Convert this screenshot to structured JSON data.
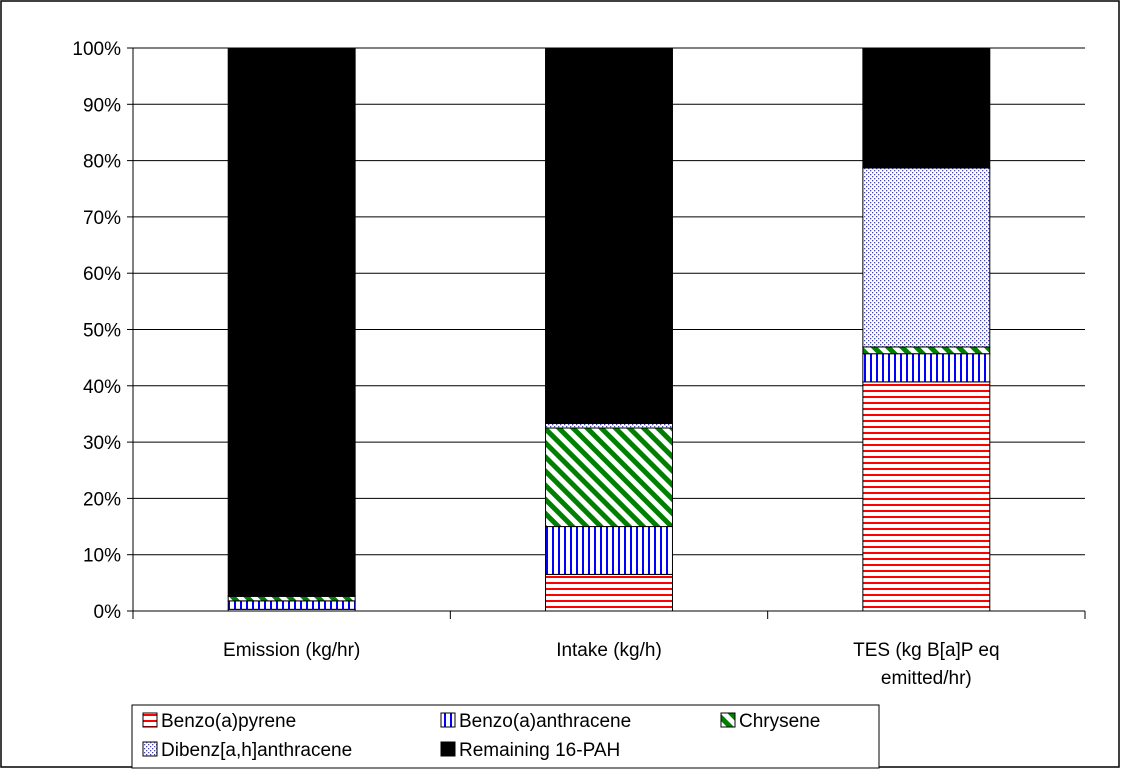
{
  "chart_data": {
    "type": "bar",
    "stacked": true,
    "percent": true,
    "categories": [
      "Emission (kg/hr)",
      "Intake (kg/h)",
      "TES (kg B[a]P eq emitted/hr)"
    ],
    "category_lines": [
      [
        "Emission (kg/hr)"
      ],
      [
        "Intake (kg/h)"
      ],
      [
        "TES (kg B[a]P eq",
        "emitted/hr)"
      ]
    ],
    "series": [
      {
        "name": "Benzo(a)pyrene",
        "values": [
          0.3,
          6.5,
          40.7
        ],
        "color": "#ff0000",
        "pattern": "horizontal-lines"
      },
      {
        "name": "Benzo(a)anthracene",
        "values": [
          1.5,
          8.5,
          5.0
        ],
        "color": "#0000ff",
        "pattern": "vertical-lines"
      },
      {
        "name": "Chrysene",
        "values": [
          0.8,
          17.5,
          1.2
        ],
        "color": "#008000",
        "pattern": "diagonal-lines"
      },
      {
        "name": "Dibenz[a,h]anthracene",
        "values": [
          0.1,
          0.8,
          31.8
        ],
        "color": "#4a4aa8",
        "pattern": "dots"
      },
      {
        "name": "Remaining 16-PAH",
        "values": [
          97.3,
          66.7,
          21.3
        ],
        "color": "#000000",
        "pattern": "solid"
      }
    ],
    "y_ticks": [
      "0%",
      "10%",
      "20%",
      "30%",
      "40%",
      "50%",
      "60%",
      "70%",
      "80%",
      "90%",
      "100%"
    ],
    "ylim": [
      0,
      100
    ],
    "grid": true,
    "legend": "bottom"
  }
}
